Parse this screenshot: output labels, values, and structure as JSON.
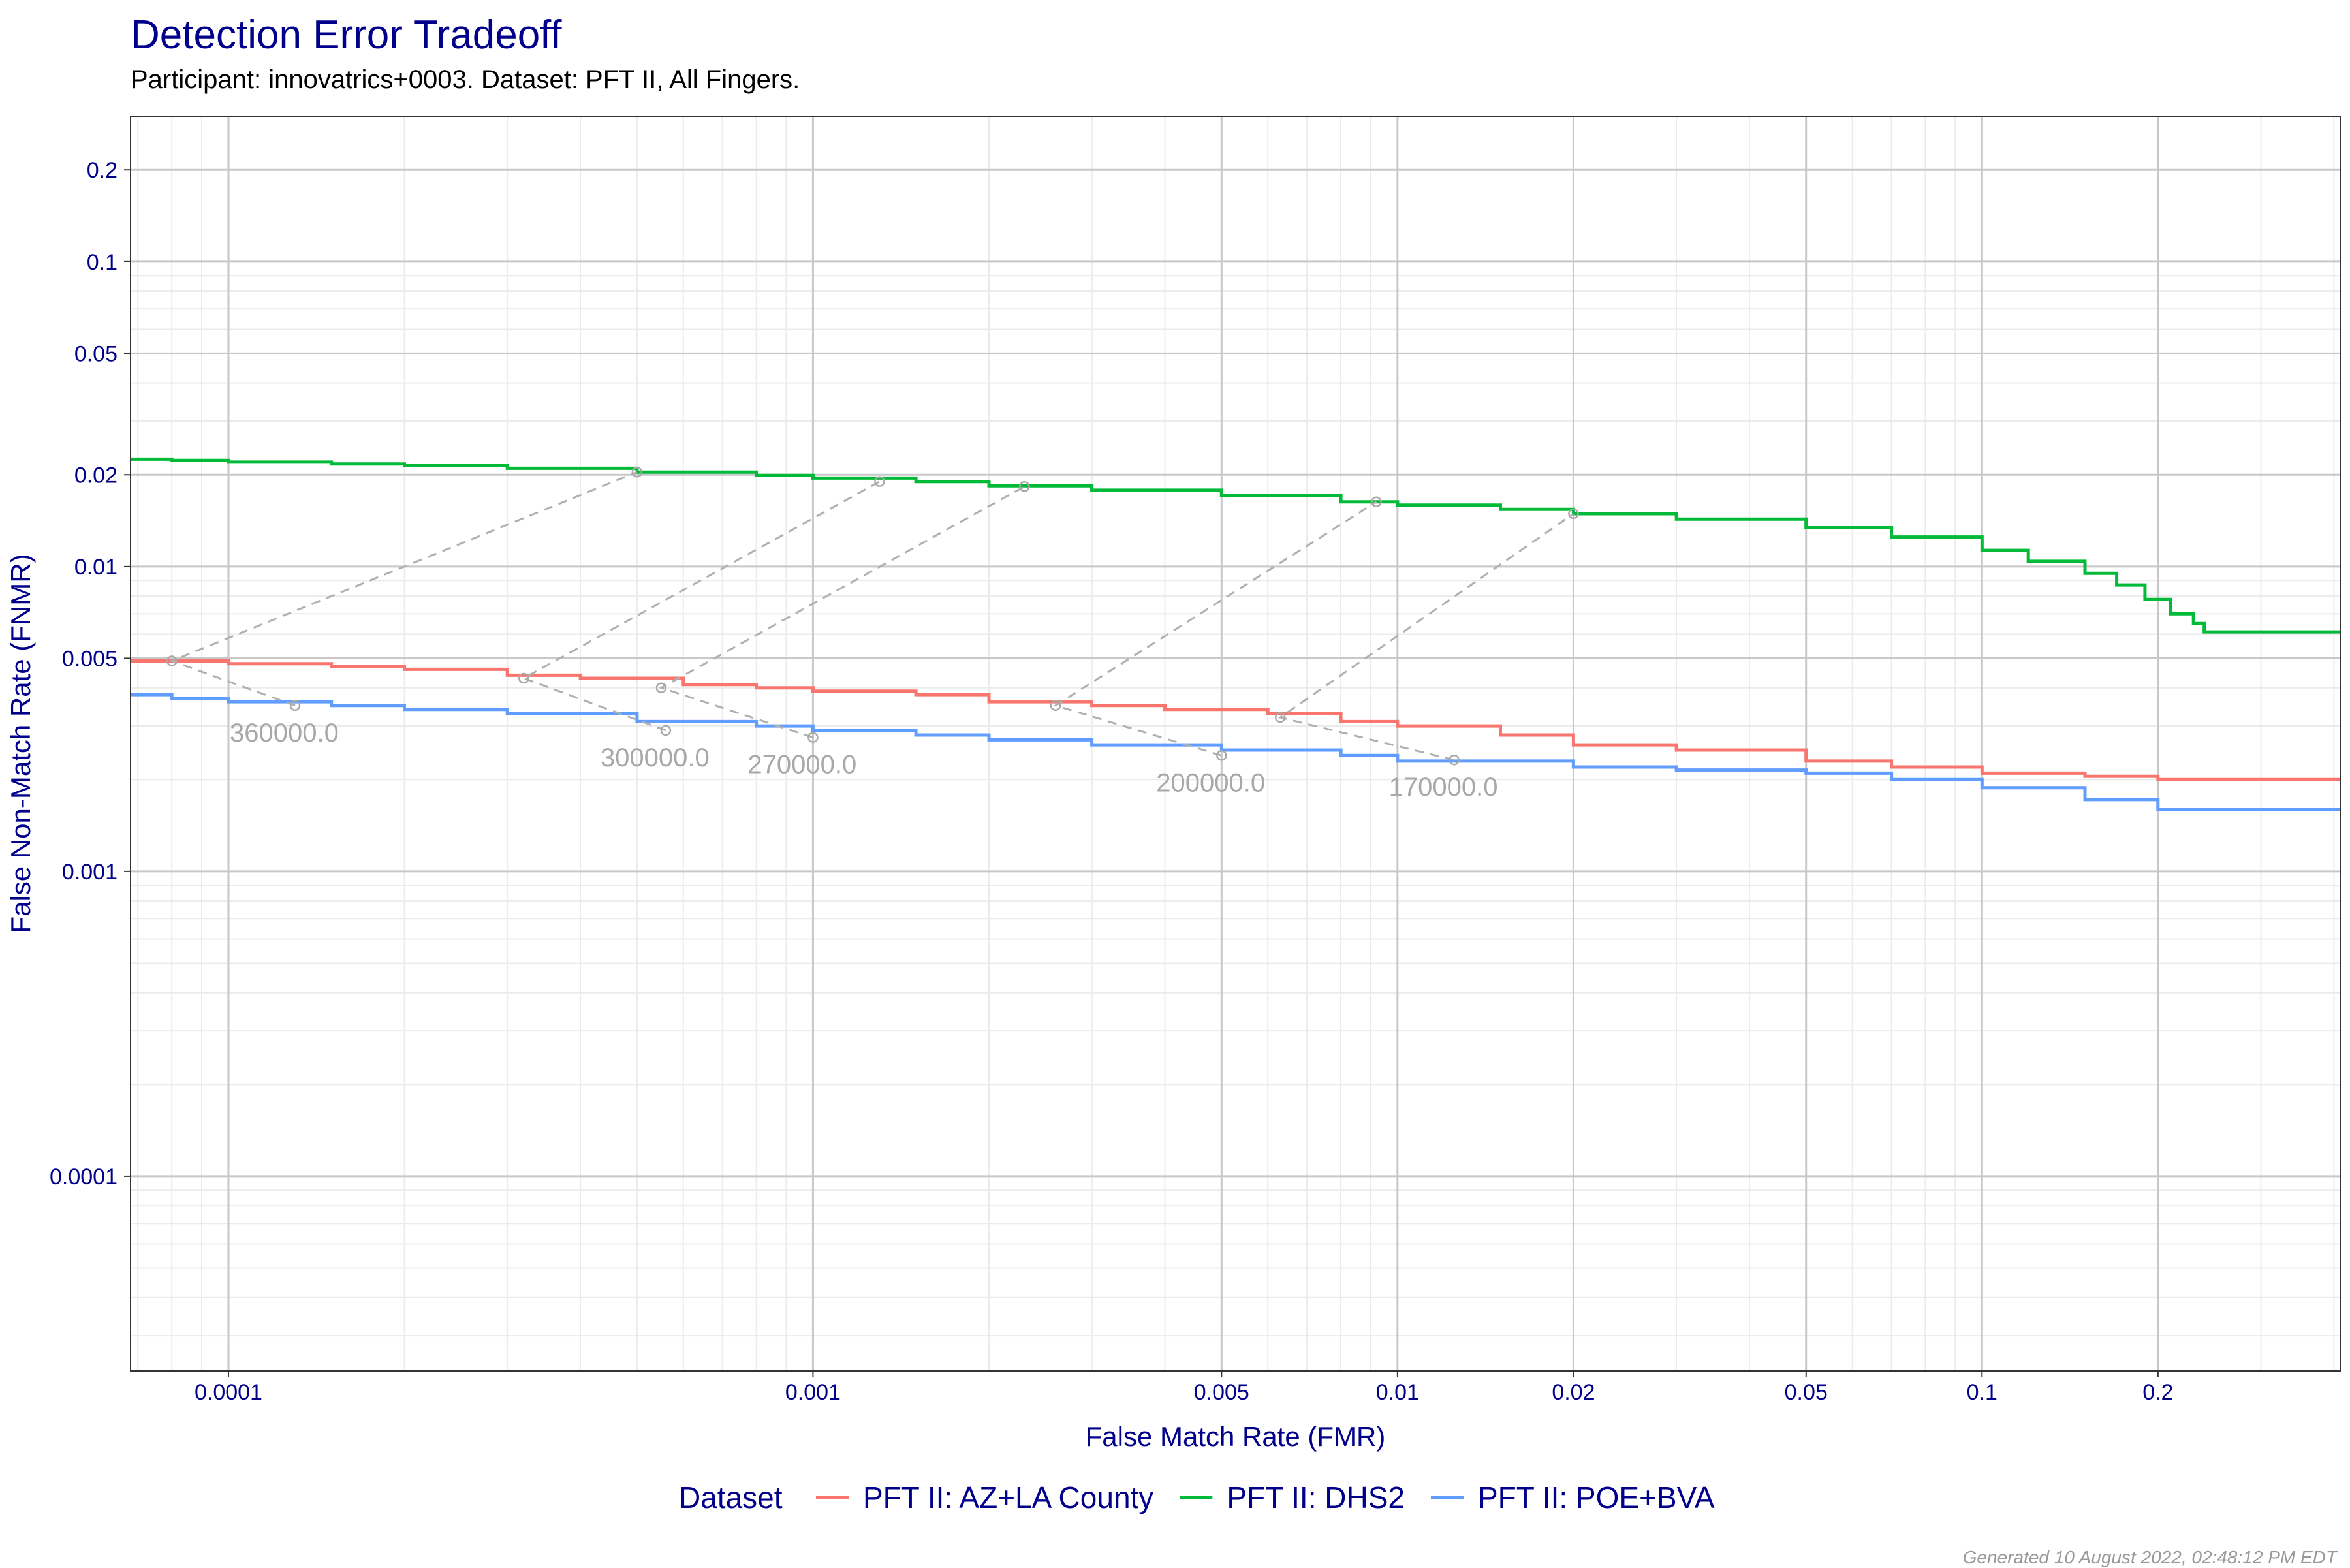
{
  "title": "Detection Error Tradeoff",
  "subtitle": "Participant: innovatrics+0003. Dataset: PFT II, All Fingers.",
  "footer": "Generated 10 August 2022, 02:48:12 PM EDT",
  "chart_data": {
    "type": "line",
    "title": "Detection Error Tradeoff",
    "subtitle": "Participant: innovatrics+0003. Dataset: PFT II, All Fingers.",
    "xlabel": "False Match Rate (FMR)",
    "ylabel": "False Non-Match Rate (FNMR)",
    "x_scale": "log",
    "y_scale": "log",
    "xlim": [
      6.8e-05,
      0.41
    ],
    "ylim": [
      2.3e-05,
      0.3
    ],
    "grid": true,
    "x_ticks": [
      0.0001,
      0.001,
      0.005,
      0.01,
      0.02,
      0.05,
      0.1,
      0.2
    ],
    "x_tick_labels": [
      "0.0001",
      "0.001",
      "0.005",
      "0.01",
      "0.02",
      "0.05",
      "0.1",
      "0.2"
    ],
    "y_ticks": [
      0.0001,
      0.001,
      0.005,
      0.01,
      0.02,
      0.05,
      0.1,
      0.2
    ],
    "y_tick_labels": [
      "0.0001",
      "0.001",
      "0.005",
      "0.01",
      "0.02",
      "0.05",
      "0.1",
      "0.2"
    ],
    "legend": {
      "title": "Dataset",
      "position": "bottom"
    },
    "series": [
      {
        "name": "PFT II: AZ+LA County",
        "color": "#F8766D",
        "points": [
          [
            6.8e-05,
            0.0049
          ],
          [
            8e-05,
            0.0049
          ],
          [
            0.0001,
            0.0048
          ],
          [
            0.00015,
            0.0047
          ],
          [
            0.0002,
            0.0046
          ],
          [
            0.0003,
            0.0044
          ],
          [
            0.0004,
            0.0043
          ],
          [
            0.0006,
            0.0041
          ],
          [
            0.0008,
            0.004
          ],
          [
            0.001,
            0.0039
          ],
          [
            0.0015,
            0.0038
          ],
          [
            0.002,
            0.0036
          ],
          [
            0.003,
            0.0035
          ],
          [
            0.004,
            0.0034
          ],
          [
            0.006,
            0.0033
          ],
          [
            0.008,
            0.0031
          ],
          [
            0.01,
            0.003
          ],
          [
            0.015,
            0.0028
          ],
          [
            0.02,
            0.0026
          ],
          [
            0.03,
            0.0025
          ],
          [
            0.05,
            0.0023
          ],
          [
            0.07,
            0.0022
          ],
          [
            0.1,
            0.0021
          ],
          [
            0.15,
            0.00205
          ],
          [
            0.2,
            0.002
          ],
          [
            0.41,
            0.002
          ]
        ]
      },
      {
        "name": "PFT II: DHS2",
        "color": "#00BA38",
        "points": [
          [
            6.8e-05,
            0.0225
          ],
          [
            8e-05,
            0.0223
          ],
          [
            0.0001,
            0.022
          ],
          [
            0.00015,
            0.0217
          ],
          [
            0.0002,
            0.0214
          ],
          [
            0.0003,
            0.021
          ],
          [
            0.0005,
            0.0204
          ],
          [
            0.0008,
            0.0199
          ],
          [
            0.001,
            0.0195
          ],
          [
            0.0015,
            0.019
          ],
          [
            0.002,
            0.0184
          ],
          [
            0.003,
            0.0178
          ],
          [
            0.005,
            0.0171
          ],
          [
            0.008,
            0.0163
          ],
          [
            0.01,
            0.0159
          ],
          [
            0.015,
            0.0154
          ],
          [
            0.02,
            0.0149
          ],
          [
            0.03,
            0.0143
          ],
          [
            0.05,
            0.0134
          ],
          [
            0.07,
            0.0125
          ],
          [
            0.1,
            0.0113
          ],
          [
            0.12,
            0.0104
          ],
          [
            0.15,
            0.0095
          ],
          [
            0.17,
            0.0087
          ],
          [
            0.19,
            0.0078
          ],
          [
            0.21,
            0.007
          ],
          [
            0.23,
            0.0065
          ],
          [
            0.24,
            0.0061
          ],
          [
            0.41,
            0.0061
          ]
        ]
      },
      {
        "name": "PFT II: POE+BVA",
        "color": "#619CFF",
        "points": [
          [
            6.8e-05,
            0.0038
          ],
          [
            8e-05,
            0.0037
          ],
          [
            0.0001,
            0.0036
          ],
          [
            0.00015,
            0.0035
          ],
          [
            0.0002,
            0.0034
          ],
          [
            0.0003,
            0.0033
          ],
          [
            0.0005,
            0.0031
          ],
          [
            0.0008,
            0.003
          ],
          [
            0.001,
            0.0029
          ],
          [
            0.0015,
            0.0028
          ],
          [
            0.002,
            0.0027
          ],
          [
            0.003,
            0.0026
          ],
          [
            0.005,
            0.0025
          ],
          [
            0.008,
            0.0024
          ],
          [
            0.01,
            0.0023
          ],
          [
            0.02,
            0.0022
          ],
          [
            0.03,
            0.00215
          ],
          [
            0.05,
            0.0021
          ],
          [
            0.07,
            0.002
          ],
          [
            0.1,
            0.00188
          ],
          [
            0.15,
            0.00172
          ],
          [
            0.2,
            0.0016
          ],
          [
            0.41,
            0.0016
          ]
        ]
      }
    ],
    "threshold_annotations": [
      {
        "label": "360000.0",
        "fmr_poe": 0.00013,
        "fnmr_poe": 0.0035,
        "fmr_az": 8e-05,
        "fnmr_az": 0.0049,
        "fmr_dhs": 0.0005,
        "fnmr_dhs": 0.0204
      },
      {
        "label": "300000.0",
        "fmr_poe": 0.00056,
        "fnmr_poe": 0.0029,
        "fmr_az": 0.00032,
        "fnmr_az": 0.0043,
        "fmr_dhs": 0.0013,
        "fnmr_dhs": 0.019
      },
      {
        "label": "270000.0",
        "fmr_poe": 0.001,
        "fnmr_poe": 0.00275,
        "fmr_az": 0.00055,
        "fnmr_az": 0.004,
        "fmr_dhs": 0.0023,
        "fnmr_dhs": 0.0183
      },
      {
        "label": "200000.0",
        "fmr_poe": 0.005,
        "fnmr_poe": 0.0024,
        "fmr_az": 0.0026,
        "fnmr_az": 0.0035,
        "fmr_dhs": 0.0092,
        "fnmr_dhs": 0.0163
      },
      {
        "label": "170000.0",
        "fmr_poe": 0.0125,
        "fnmr_poe": 0.00232,
        "fmr_az": 0.0063,
        "fnmr_az": 0.0032,
        "fmr_dhs": 0.02,
        "fnmr_dhs": 0.0149
      }
    ]
  }
}
